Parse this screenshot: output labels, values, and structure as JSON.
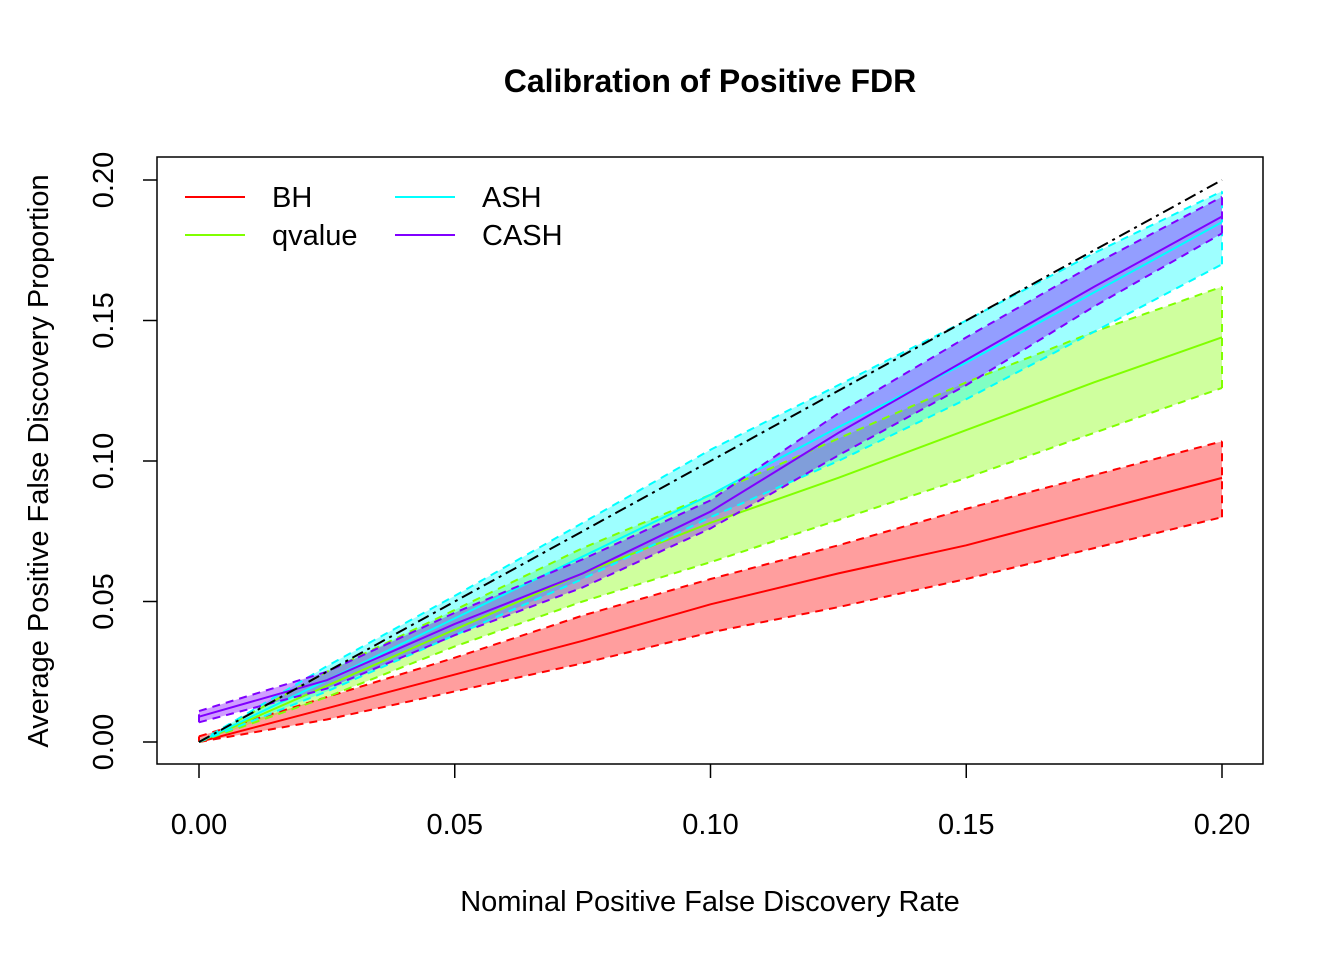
{
  "chart_data": {
    "type": "line",
    "title": "Calibration of Positive FDR",
    "xlabel": "Nominal Positive False Discovery Rate",
    "ylabel": "Average Positive False Discovery Proportion",
    "xlim": [
      0,
      0.2
    ],
    "ylim": [
      0,
      0.2
    ],
    "xticks": [
      "0.00",
      "0.05",
      "0.10",
      "0.15",
      "0.20"
    ],
    "yticks": [
      "0.00",
      "0.05",
      "0.10",
      "0.15",
      "0.20"
    ],
    "grid": false,
    "legend_placement": "top-left",
    "reference_line": {
      "style": "dash-dot",
      "color": "#000000",
      "slope": 1,
      "intercept": 0
    },
    "x": [
      0,
      0.025,
      0.05,
      0.075,
      0.1,
      0.125,
      0.15,
      0.175,
      0.2
    ],
    "series": [
      {
        "name": "BH",
        "color": "#FF0000",
        "values": [
          0,
          0.012,
          0.024,
          0.036,
          0.049,
          0.06,
          0.07,
          0.082,
          0.094
        ],
        "lower": [
          0,
          0.008,
          0.018,
          0.028,
          0.039,
          0.048,
          0.058,
          0.069,
          0.08
        ],
        "upper": [
          0.002,
          0.016,
          0.03,
          0.045,
          0.058,
          0.07,
          0.083,
          0.095,
          0.107
        ]
      },
      {
        "name": "qvalue",
        "color": "#80FF00",
        "values": [
          0,
          0.02,
          0.04,
          0.06,
          0.078,
          0.094,
          0.111,
          0.128,
          0.144
        ],
        "lower": [
          0,
          0.016,
          0.034,
          0.05,
          0.064,
          0.079,
          0.094,
          0.11,
          0.126
        ],
        "upper": [
          0,
          0.025,
          0.047,
          0.069,
          0.088,
          0.108,
          0.128,
          0.146,
          0.162
        ]
      },
      {
        "name": "ASH",
        "color": "#00FFFF",
        "values": [
          0,
          0.022,
          0.044,
          0.066,
          0.088,
          0.112,
          0.135,
          0.16,
          0.185
        ],
        "lower": [
          0,
          0.018,
          0.038,
          0.058,
          0.08,
          0.1,
          0.122,
          0.146,
          0.17
        ],
        "upper": [
          0,
          0.027,
          0.052,
          0.078,
          0.104,
          0.127,
          0.15,
          0.174,
          0.196
        ]
      },
      {
        "name": "CASH",
        "color": "#8000FF",
        "values": [
          0.009,
          0.022,
          0.042,
          0.06,
          0.082,
          0.11,
          0.136,
          0.162,
          0.187
        ],
        "lower": [
          0.007,
          0.019,
          0.038,
          0.055,
          0.076,
          0.102,
          0.127,
          0.155,
          0.181
        ],
        "upper": [
          0.011,
          0.025,
          0.046,
          0.065,
          0.086,
          0.117,
          0.144,
          0.17,
          0.194
        ]
      }
    ]
  }
}
